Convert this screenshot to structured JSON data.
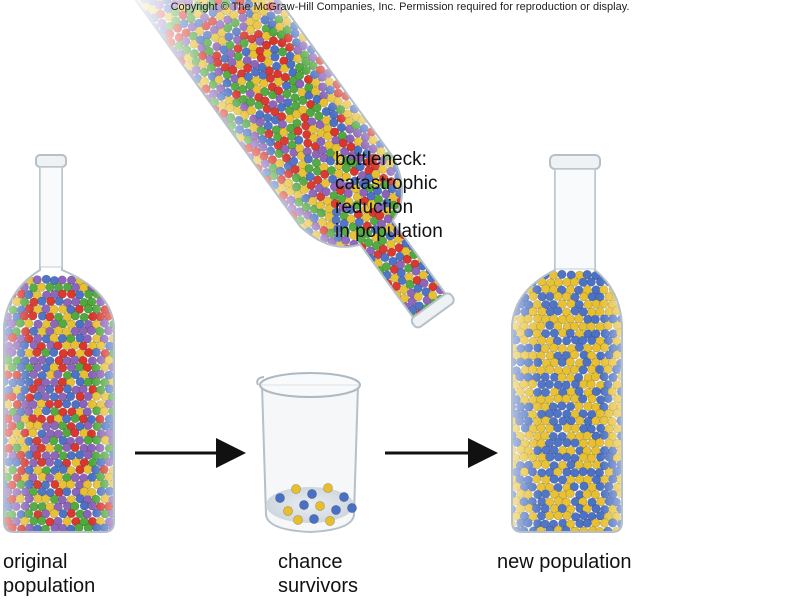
{
  "copyright": "Copyright © The McGraw-Hill Companies, Inc. Permission required for reproduction or display.",
  "bottleneck_label": [
    "bottleneck:",
    "catastrophic",
    "reduction",
    "in population"
  ],
  "original_label": [
    "original",
    "population"
  ],
  "chance_label": [
    "chance",
    "survivors"
  ],
  "new_label": [
    "new population"
  ],
  "colors": {
    "red": "#d9342b",
    "green": "#4ea83c",
    "yellow": "#e7bf2e",
    "blue": "#4a70c4",
    "purple": "#8a62b8",
    "arrow": "#111111",
    "glass": "#c9d4dc"
  },
  "populations": {
    "original": [
      "red",
      "green",
      "yellow",
      "blue",
      "purple"
    ],
    "survivors": [
      "blue",
      "yellow"
    ],
    "new": [
      "blue",
      "yellow"
    ]
  }
}
